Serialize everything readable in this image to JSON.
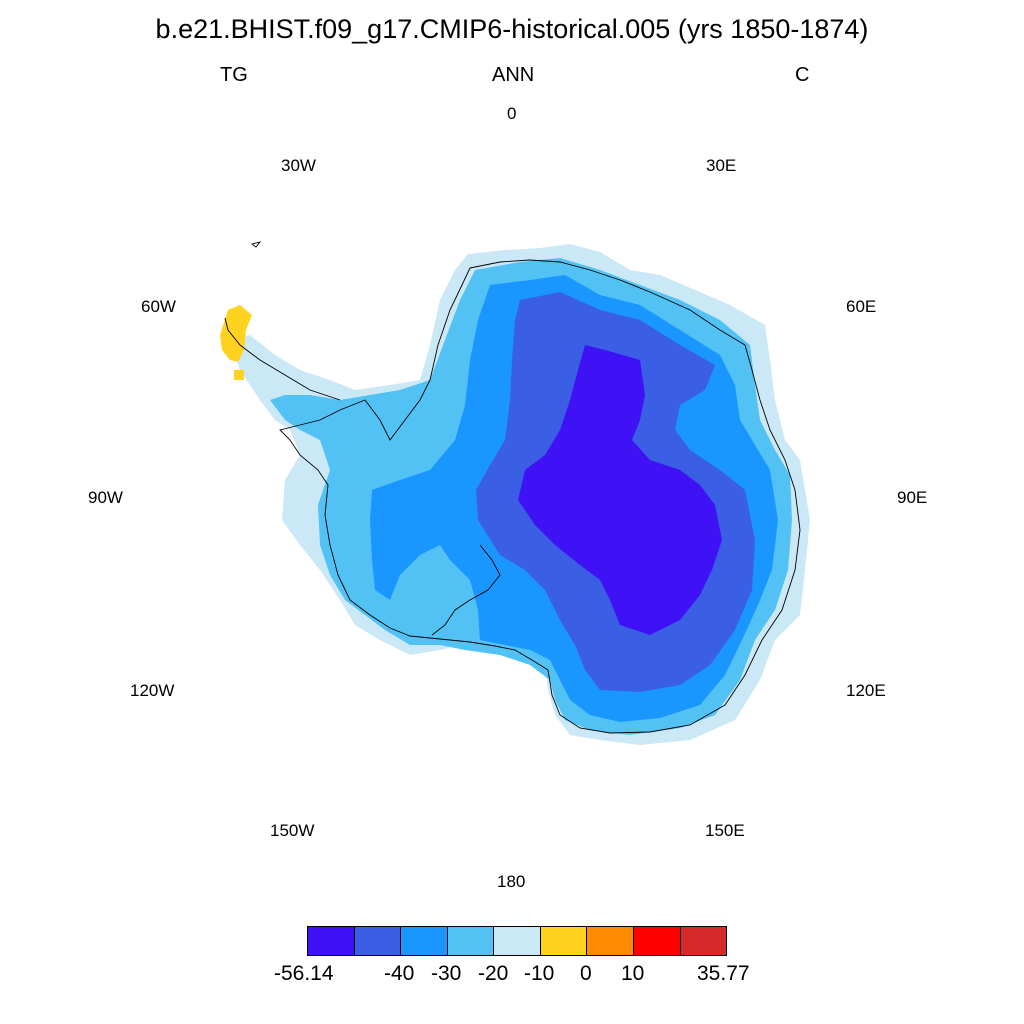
{
  "title": "b.e21.BHIST.f09_g17.CMIP6-historical.005 (yrs 1850-1874)",
  "left_label": "TG",
  "center_label": "ANN",
  "right_label": "C",
  "longitude_labels": {
    "lon_0": "0",
    "lon_30e": "30E",
    "lon_60e": "60E",
    "lon_90e": "90E",
    "lon_120e": "120E",
    "lon_150e": "150E",
    "lon_180": "180",
    "lon_150w": "150W",
    "lon_120w": "120W",
    "lon_90w": "90W",
    "lon_60w": "60W",
    "lon_30w": "30W"
  },
  "colorbar": {
    "colors": [
      "#3f12f5",
      "#3a5ee4",
      "#1a96ff",
      "#52c2f5",
      "#cbe8f6",
      "#ffd21f",
      "#ff8a00",
      "#ff0000",
      "#d62a2a"
    ],
    "labels": {
      "min": "-56.14",
      "l1": "-40",
      "l2": "-30",
      "l3": "-20",
      "l4": "-10",
      "l5": "0",
      "l6": "10",
      "max": "35.77"
    }
  },
  "fill_colors": {
    "coast_band": "#cbe8f6",
    "outer": "#52c2f5",
    "middle": "#1a96ff",
    "inner": "#3a5ee4",
    "core": "#3f12f5",
    "peninsula_tip": "#ffd21f"
  }
}
